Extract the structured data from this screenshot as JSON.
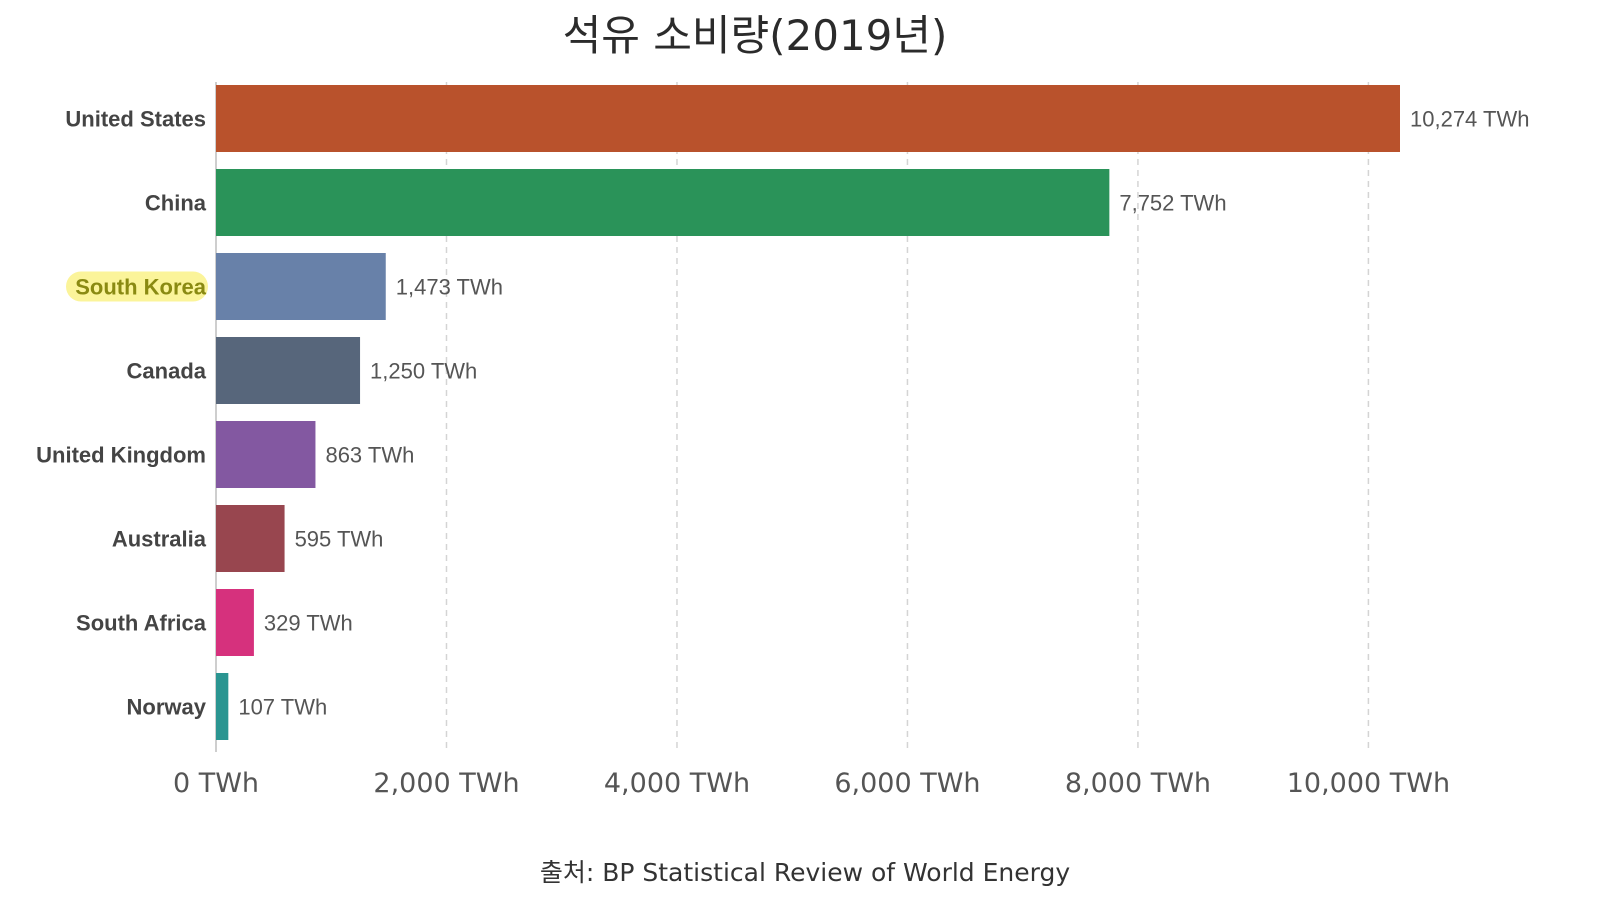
{
  "chart_data": {
    "type": "bar",
    "orientation": "horizontal",
    "title": "석유 소비량(2019년)",
    "xlabel": "",
    "ylabel": "",
    "unit": "TWh",
    "categories": [
      "United States",
      "China",
      "South Korea",
      "Canada",
      "United Kingdom",
      "Australia",
      "South Africa",
      "Norway"
    ],
    "values": [
      10274,
      7752,
      1473,
      1250,
      863,
      595,
      329,
      107
    ],
    "value_labels": [
      "10,274 TWh",
      "7,752 TWh",
      "1,473 TWh",
      "1,250 TWh",
      "863 TWh",
      "595 TWh",
      "329 TWh",
      "107 TWh"
    ],
    "colors": [
      "#b9522c",
      "#2a9359",
      "#6881a9",
      "#57667b",
      "#8358a1",
      "#98464f",
      "#d6317d",
      "#2a9591"
    ],
    "highlight": {
      "category": "South Korea",
      "color": "#fbf49a"
    },
    "xlim": [
      0,
      10274
    ],
    "xticks": [
      0,
      2000,
      4000,
      6000,
      8000,
      10000
    ],
    "xtick_labels": [
      "0 TWh",
      "2,000 TWh",
      "4,000 TWh",
      "6,000 TWh",
      "8,000 TWh",
      "10,000 TWh"
    ],
    "grid": "vertical dashed",
    "legend": "none",
    "source": "출처: BP Statistical Review of World Energy"
  }
}
